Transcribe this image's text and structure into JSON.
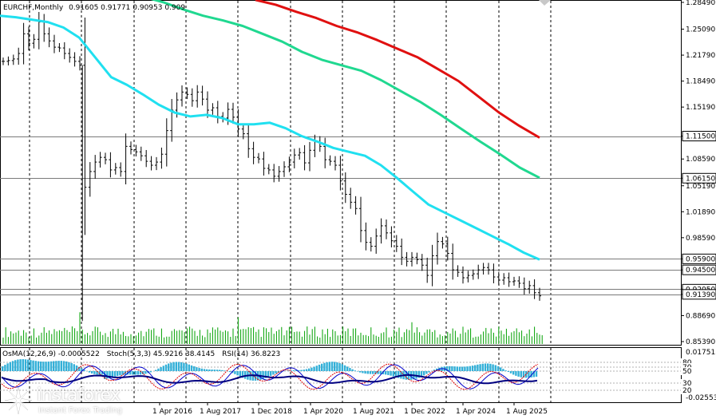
{
  "header": {
    "symbol": "EURCHF,Monthly",
    "ohlc": "0.91605 0.91771 0.90953 0.909"
  },
  "indicators": {
    "osma": "OsMA(12,26,9) -0.0005522",
    "stoch": "Stoch(5,3,3) 45.9216 38.4145",
    "rsi": "RSI(14) 36.8223"
  },
  "logo": {
    "name": "instaforex",
    "tagline": "Instant Forex Trading"
  },
  "chart_data": {
    "type": "candlestick",
    "x_tick_labels": [
      "1 Apr 2016",
      "1 Aug 2017",
      "1 Dec 2018",
      "1 Apr 2020",
      "1 Aug 2021",
      "1 Dec 2022",
      "1 Apr 2024",
      "1 Aug 2025"
    ],
    "main_panel": {
      "y_tick_labels": [
        "1.28490",
        "1.25090",
        "1.21790",
        "1.18490",
        "1.15190",
        "1.11500",
        "1.08590",
        "1.06150",
        "1.05190",
        "1.01890",
        "0.98590",
        "0.95900",
        "0.94500",
        "0.92050",
        "0.91390",
        "0.88690",
        "0.85390"
      ],
      "ylim": [
        0.8539,
        1.2849
      ],
      "horizontal_levels": [
        1.115,
        1.0615,
        0.959,
        0.945,
        0.9205,
        0.9139
      ],
      "price_series": [
        1.21,
        1.211,
        1.213,
        1.22,
        1.245,
        1.233,
        1.238,
        1.26,
        1.245,
        1.236,
        1.228,
        1.227,
        1.22,
        1.215,
        1.21,
        1.205,
        1.05,
        1.07,
        1.082,
        1.088,
        1.085,
        1.072,
        1.075,
        1.07,
        1.102,
        1.098,
        1.095,
        1.09,
        1.083,
        1.078,
        1.082,
        1.092,
        1.122,
        1.148,
        1.161,
        1.171,
        1.168,
        1.16,
        1.171,
        1.162,
        1.148,
        1.151,
        1.14,
        1.138,
        1.149,
        1.139,
        1.124,
        1.118,
        1.099,
        1.088,
        1.086,
        1.074,
        1.072,
        1.064,
        1.07,
        1.076,
        1.082,
        1.091,
        1.094,
        1.081,
        1.097,
        1.108,
        1.102,
        1.085,
        1.083,
        1.078,
        1.058,
        1.041,
        1.031,
        1.023,
        0.995,
        0.98,
        0.975,
        0.988,
        1.001,
        0.992,
        0.982,
        0.975,
        0.961,
        0.956,
        0.961,
        0.958,
        0.951,
        0.938,
        0.963,
        0.981,
        0.978,
        0.966,
        0.945,
        0.942,
        0.935,
        0.938,
        0.94,
        0.945,
        0.948,
        0.945,
        0.936,
        0.932,
        0.935,
        0.93,
        0.931,
        0.928,
        0.921,
        0.925,
        0.916,
        0.912
      ],
      "ma_cyan": [
        1.268,
        1.266,
        1.263,
        1.26,
        1.253,
        1.24,
        1.215,
        1.19,
        1.18,
        1.168,
        1.155,
        1.145,
        1.14,
        1.142,
        1.138,
        1.13,
        1.13,
        1.132,
        1.125,
        1.115,
        1.108,
        1.1,
        1.095,
        1.09,
        1.078,
        1.062,
        1.045,
        1.028,
        1.018,
        1.008,
        0.998,
        0.988,
        0.978,
        0.967,
        0.958
      ],
      "ma_green": [
        1.292,
        1.285,
        1.276,
        1.268,
        1.262,
        1.255,
        1.245,
        1.235,
        1.222,
        1.212,
        1.205,
        1.198,
        1.186,
        1.172,
        1.158,
        1.142,
        1.125,
        1.108,
        1.092,
        1.075,
        1.062
      ],
      "ma_red": [
        1.288,
        1.282,
        1.273,
        1.265,
        1.255,
        1.247,
        1.237,
        1.226,
        1.215,
        1.2,
        1.185,
        1.165,
        1.145,
        1.128,
        1.113
      ]
    },
    "indicator_panel": {
      "y_tick_labels": [
        "0.0175134",
        "-0.0255364"
      ],
      "rsi_ticks": [
        "80",
        "70",
        "50",
        "30",
        "20"
      ],
      "ylim": [
        -0.0255364,
        0.0175134
      ]
    }
  }
}
